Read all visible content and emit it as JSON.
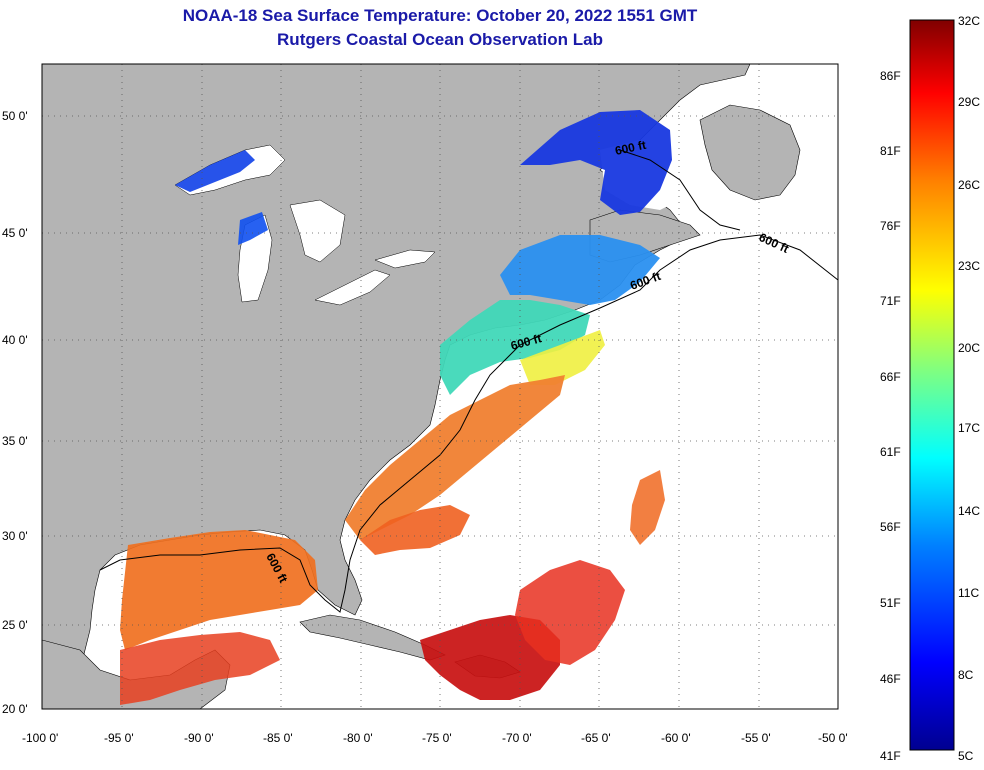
{
  "title": {
    "line1": "NOAA-18 Sea Surface Temperature:  October 20, 2022 1551 GMT",
    "line2": "Rutgers Coastal Ocean Observation Lab"
  },
  "map": {
    "lon_ticks": [
      "-100 0'",
      "-95 0'",
      "-90 0'",
      "-85 0'",
      "-80 0'",
      "-75 0'",
      "-70 0'",
      "-65 0'",
      "-60 0'",
      "-55 0'",
      "-50 0'"
    ],
    "lat_ticks": [
      "20 0'",
      "25 0'",
      "30 0'",
      "35 0'",
      "40 0'",
      "45 0'",
      "50 0'"
    ],
    "contour_label": "600 ft",
    "colors": {
      "land": "#b4b4b4",
      "no_data": "#ffffff",
      "frame": "#000000"
    }
  },
  "colorbar": {
    "celsius": [
      "32C",
      "29C",
      "26C",
      "23C",
      "20C",
      "17C",
      "14C",
      "11C",
      "8C",
      "5C"
    ],
    "fahrenheit": [
      "86F",
      "81F",
      "76F",
      "71F",
      "66F",
      "61F",
      "56F",
      "51F",
      "46F",
      "41F"
    ],
    "colors": [
      "#000090",
      "#0000ff",
      "#0080ff",
      "#00ffff",
      "#80ff80",
      "#ffff00",
      "#ff8000",
      "#ff0000",
      "#800000"
    ]
  }
}
